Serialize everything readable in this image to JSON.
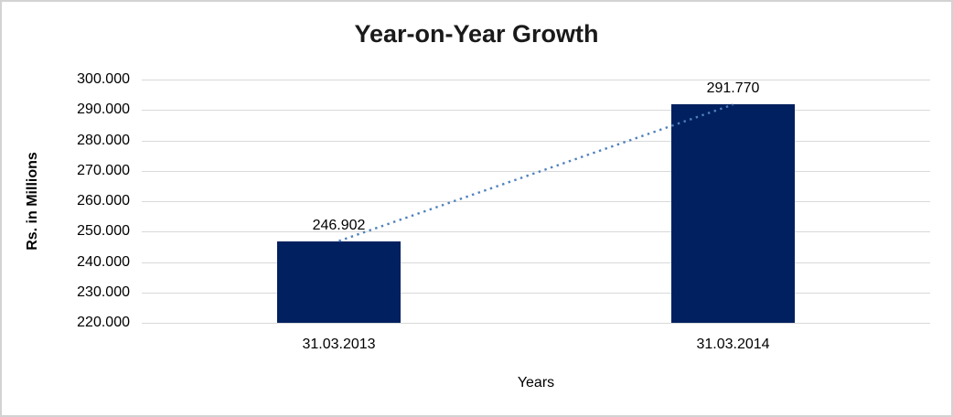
{
  "chart_data": {
    "type": "bar",
    "title": "Year-on-Year Growth",
    "categories": [
      "31.03.2013",
      "31.03.2014"
    ],
    "values": [
      246.902,
      291.77
    ],
    "data_labels": [
      "246.902",
      "291.770"
    ],
    "xlabel": "Years",
    "ylabel": "Rs. in Millions",
    "ylim": [
      220,
      300
    ],
    "ytick_values": [
      220,
      230,
      240,
      250,
      260,
      270,
      280,
      290,
      300
    ],
    "ytick_labels": [
      "220.000",
      "230.000",
      "240.000",
      "250.000",
      "260.000",
      "270.000",
      "280.000",
      "290.000",
      "300.000"
    ],
    "grid": true,
    "legend": "none",
    "bar_color": "#002060",
    "gridline_color": "#D9D9D9",
    "trendline": {
      "type": "linear",
      "style": "dotted",
      "color": "#4F81BD"
    }
  },
  "frame": {
    "background": "#FFFFFF",
    "border_color": "#D3D3D3"
  }
}
